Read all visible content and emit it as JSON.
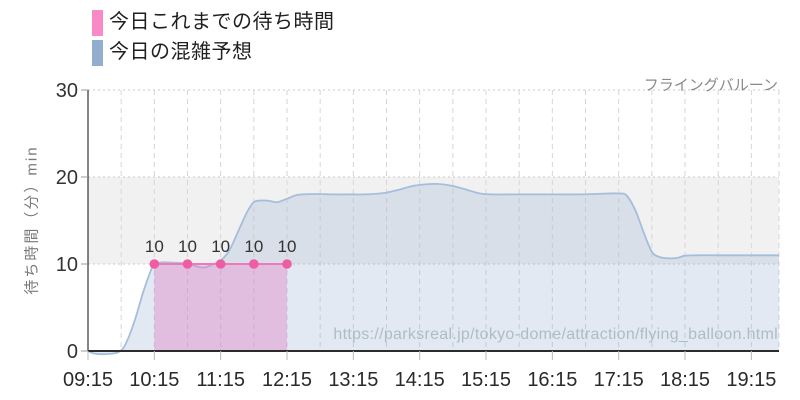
{
  "header": {
    "legend": [
      {
        "label": "今日これまでの待ち時間",
        "color": "#f98ac7"
      },
      {
        "label": "今日の混雑予想",
        "color": "#92aecf"
      }
    ],
    "attraction_title": "フライングバルーン"
  },
  "watermark": "https://parksreal.jp/tokyo-dome/attraction/flying_balloon.html",
  "axes": {
    "y_title": "待ち時間（分）min"
  },
  "chart_data": {
    "type": "area",
    "title": "フライングバルーン",
    "xlabel": "",
    "ylabel": "待ち時間（分）min",
    "ylim": [
      0,
      30
    ],
    "y_ticks": [
      0,
      10,
      20,
      30
    ],
    "x_ticks": [
      "09:15",
      "10:15",
      "11:15",
      "12:15",
      "13:15",
      "14:15",
      "15:15",
      "16:15",
      "17:15",
      "18:15",
      "19:15"
    ],
    "x_range_minutes": [
      "09:15",
      "19:40"
    ],
    "grid": {
      "band_from": 10,
      "band_to": 20,
      "band_color": "#f1f1f1",
      "h_line_color": "#c9c9c9",
      "v_line_color": "#d6d6d6"
    },
    "legend_position": "top-left",
    "series": [
      {
        "name": "今日これまでの待ち時間",
        "type": "line",
        "line_color": "#f178b8",
        "marker_color": "#ee5ca4",
        "fill": "rgba(225,128,200,0.42)",
        "data_labels": true,
        "points": [
          [
            "10:15",
            10
          ],
          [
            "10:45",
            10
          ],
          [
            "11:15",
            10
          ],
          [
            "11:45",
            10
          ],
          [
            "12:15",
            10
          ]
        ]
      },
      {
        "name": "今日の混雑予想",
        "type": "area",
        "line_color": "#a4bedb",
        "fill": "rgba(146,174,207,0.27)",
        "data_labels": false,
        "points": [
          [
            "09:15",
            0
          ],
          [
            "09:21",
            -0.3
          ],
          [
            "09:33",
            -0.35
          ],
          [
            "09:43",
            -0.1
          ],
          [
            "09:49",
            0.8
          ],
          [
            "09:57",
            3.4
          ],
          [
            "10:05",
            6.8
          ],
          [
            "10:12",
            9.3
          ],
          [
            "10:15",
            10
          ],
          [
            "10:23",
            10.2
          ],
          [
            "10:33",
            10.15
          ],
          [
            "10:45",
            10.05
          ],
          [
            "10:53",
            9.75
          ],
          [
            "11:00",
            9.6
          ],
          [
            "11:07",
            9.9
          ],
          [
            "11:15",
            10.4
          ],
          [
            "11:23",
            11.6
          ],
          [
            "11:31",
            13.8
          ],
          [
            "11:39",
            16
          ],
          [
            "11:45",
            17.1
          ],
          [
            "11:52",
            17.3
          ],
          [
            "11:59",
            17.25
          ],
          [
            "12:06",
            17.1
          ],
          [
            "12:15",
            17.5
          ],
          [
            "12:25",
            17.95
          ],
          [
            "12:40",
            18.05
          ],
          [
            "12:55",
            18
          ],
          [
            "13:10",
            18
          ],
          [
            "13:25",
            18
          ],
          [
            "13:42",
            18.15
          ],
          [
            "13:55",
            18.5
          ],
          [
            "14:08",
            18.95
          ],
          [
            "14:20",
            19.15
          ],
          [
            "14:32",
            19.2
          ],
          [
            "14:44",
            19
          ],
          [
            "14:56",
            18.6
          ],
          [
            "15:08",
            18.15
          ],
          [
            "15:20",
            18
          ],
          [
            "15:40",
            18
          ],
          [
            "16:00",
            18
          ],
          [
            "16:20",
            18
          ],
          [
            "16:40",
            18
          ],
          [
            "16:55",
            18.05
          ],
          [
            "17:05",
            18.1
          ],
          [
            "17:15",
            18.1
          ],
          [
            "17:22",
            17.9
          ],
          [
            "17:30",
            16.2
          ],
          [
            "17:38",
            13.5
          ],
          [
            "17:45",
            11.4
          ],
          [
            "17:52",
            10.8
          ],
          [
            "18:00",
            10.65
          ],
          [
            "18:08",
            10.7
          ],
          [
            "18:15",
            10.95
          ],
          [
            "18:25",
            11
          ],
          [
            "18:45",
            11
          ],
          [
            "19:05",
            11
          ],
          [
            "19:25",
            11
          ],
          [
            "19:40",
            11
          ]
        ]
      }
    ]
  }
}
